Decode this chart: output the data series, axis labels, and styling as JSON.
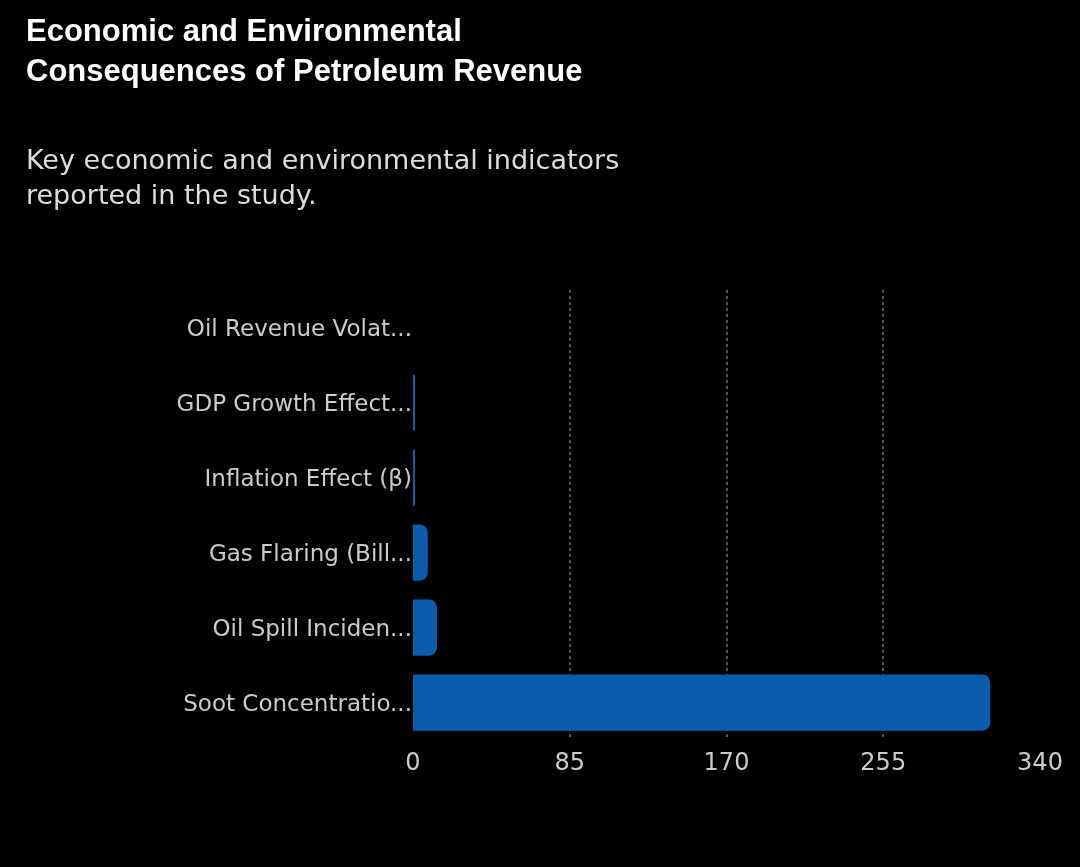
{
  "chart_data": {
    "type": "bar",
    "orientation": "horizontal",
    "title": "Economic and Environmental Consequences of Petroleum Revenue",
    "subtitle": "Key economic and environmental indicators reported in the study.",
    "categories": [
      "Oil Revenue Volat...",
      "GDP Growth Effect...",
      "Inflation Effect (β)",
      "Gas Flaring (Bill...",
      "Oil Spill Inciden...",
      "Soot Concentratio..."
    ],
    "values": [
      null,
      1,
      1,
      8,
      13,
      313
    ],
    "color": "#0a5cad",
    "xlim": [
      0,
      340
    ],
    "xticks": [
      0,
      85,
      170,
      255,
      340
    ],
    "grid": "x"
  }
}
